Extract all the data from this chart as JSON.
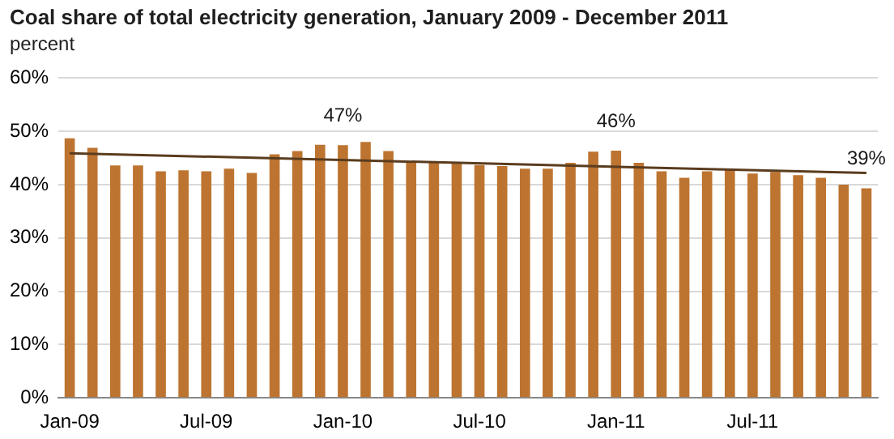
{
  "chart_data": {
    "type": "bar",
    "title": "Coal share of total electricity generation, January 2009 - December 2011",
    "ylabel": "percent",
    "categories": [
      "Jan-09",
      null,
      null,
      null,
      null,
      null,
      "Jul-09",
      null,
      null,
      null,
      null,
      null,
      "Jan-10",
      null,
      null,
      null,
      null,
      null,
      "Jul-10",
      null,
      null,
      null,
      null,
      null,
      "Jan-11",
      null,
      null,
      null,
      null,
      null,
      "Jul-11",
      null,
      null,
      null,
      null,
      null
    ],
    "series": [
      {
        "color": "#bd7430",
        "values": [
          48.7,
          46.9,
          43.6,
          43.6,
          42.5,
          42.7,
          42.5,
          43.0,
          42.2,
          45.7,
          46.3,
          47.5,
          47.4,
          48.0,
          46.3,
          44.3,
          44.1,
          44.0,
          43.7,
          43.5,
          43.0,
          43.0,
          44.1,
          46.2,
          46.4,
          44.1,
          42.5,
          41.3,
          42.5,
          43.0,
          42.1,
          42.4,
          41.8,
          41.3,
          40.0,
          39.3
        ],
        "value_labels": [
          null,
          null,
          null,
          null,
          null,
          null,
          null,
          null,
          null,
          null,
          null,
          null,
          "47%",
          null,
          null,
          null,
          null,
          null,
          null,
          null,
          null,
          null,
          null,
          null,
          "46%",
          null,
          null,
          null,
          null,
          null,
          null,
          null,
          null,
          null,
          null,
          "39%"
        ]
      },
      {
        "type": "line",
        "color": "#5a3c1e",
        "values": [
          45.9,
          null,
          null,
          null,
          null,
          null,
          null,
          null,
          null,
          null,
          null,
          null,
          null,
          null,
          null,
          null,
          null,
          null,
          null,
          null,
          null,
          null,
          null,
          null,
          null,
          null,
          null,
          null,
          null,
          null,
          null,
          null,
          null,
          null,
          null,
          42.2
        ]
      }
    ],
    "ylim": [
      0,
      60
    ],
    "yticks": [
      {
        "value": 0,
        "label": "0%"
      },
      {
        "value": 10,
        "label": "10%"
      },
      {
        "value": 20,
        "label": "20%"
      },
      {
        "value": 30,
        "label": "30%"
      },
      {
        "value": 40,
        "label": "40%"
      },
      {
        "value": 50,
        "label": "50%"
      },
      {
        "value": 60,
        "label": "60%"
      }
    ],
    "grid": "y",
    "legend": false,
    "marker": "none"
  }
}
